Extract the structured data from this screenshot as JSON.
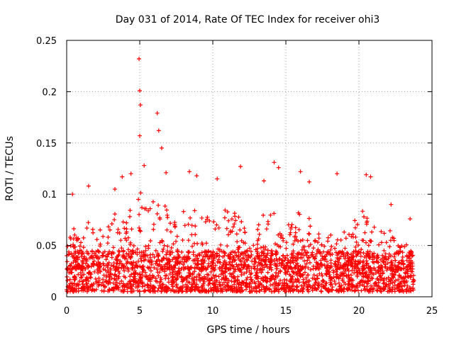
{
  "chart_data": {
    "type": "scatter",
    "title": "Day 031 of 2014, Rate Of TEC Index for receiver ohi3",
    "xlabel": "GPS time / hours",
    "ylabel": "ROTI / TECUs",
    "xlim": [
      0,
      25
    ],
    "ylim": [
      0,
      0.25
    ],
    "xticks": [
      0,
      5,
      10,
      15,
      20,
      25
    ],
    "xtick_labels": [
      "0",
      "5",
      "10",
      "15",
      "20",
      "25"
    ],
    "yticks": [
      0,
      0.05,
      0.1,
      0.15,
      0.2,
      0.25
    ],
    "ytick_labels": [
      "0",
      "0.05",
      "0.1",
      "0.15",
      "0.2",
      "0.25"
    ],
    "grid": true,
    "marker": "+",
    "color": "#ff0000",
    "series": [
      {
        "name": "ROTI",
        "x_range": [
          0,
          23.8
        ],
        "typical_range": [
          0.005,
          0.045
        ],
        "peaks": [
          {
            "x": 0.4,
            "y": 0.1
          },
          {
            "x": 1.5,
            "y": 0.108
          },
          {
            "x": 3.3,
            "y": 0.105
          },
          {
            "x": 3.8,
            "y": 0.117
          },
          {
            "x": 4.4,
            "y": 0.12
          },
          {
            "x": 4.95,
            "y": 0.232
          },
          {
            "x": 5.0,
            "y": 0.201
          },
          {
            "x": 5.05,
            "y": 0.187
          },
          {
            "x": 5.0,
            "y": 0.157
          },
          {
            "x": 5.3,
            "y": 0.128
          },
          {
            "x": 6.2,
            "y": 0.179
          },
          {
            "x": 6.3,
            "y": 0.162
          },
          {
            "x": 6.5,
            "y": 0.145
          },
          {
            "x": 6.8,
            "y": 0.121
          },
          {
            "x": 8.4,
            "y": 0.122
          },
          {
            "x": 8.9,
            "y": 0.118
          },
          {
            "x": 10.3,
            "y": 0.115
          },
          {
            "x": 11.9,
            "y": 0.127
          },
          {
            "x": 13.5,
            "y": 0.113
          },
          {
            "x": 14.2,
            "y": 0.131
          },
          {
            "x": 14.5,
            "y": 0.126
          },
          {
            "x": 16.0,
            "y": 0.122
          },
          {
            "x": 16.6,
            "y": 0.112
          },
          {
            "x": 18.5,
            "y": 0.12
          },
          {
            "x": 20.5,
            "y": 0.119
          },
          {
            "x": 20.8,
            "y": 0.117
          },
          {
            "x": 22.2,
            "y": 0.09
          },
          {
            "x": 23.5,
            "y": 0.076
          }
        ],
        "envelope": [
          {
            "x": 0.0,
            "y": 0.06
          },
          {
            "x": 0.5,
            "y": 0.075
          },
          {
            "x": 1.0,
            "y": 0.055
          },
          {
            "x": 1.5,
            "y": 0.075
          },
          {
            "x": 2.0,
            "y": 0.06
          },
          {
            "x": 2.5,
            "y": 0.07
          },
          {
            "x": 3.0,
            "y": 0.08
          },
          {
            "x": 3.5,
            "y": 0.085
          },
          {
            "x": 4.0,
            "y": 0.09
          },
          {
            "x": 4.5,
            "y": 0.085
          },
          {
            "x": 5.0,
            "y": 0.11
          },
          {
            "x": 5.5,
            "y": 0.09
          },
          {
            "x": 6.0,
            "y": 0.095
          },
          {
            "x": 6.5,
            "y": 0.1
          },
          {
            "x": 7.0,
            "y": 0.085
          },
          {
            "x": 7.5,
            "y": 0.07
          },
          {
            "x": 8.0,
            "y": 0.085
          },
          {
            "x": 8.5,
            "y": 0.095
          },
          {
            "x": 9.0,
            "y": 0.08
          },
          {
            "x": 9.5,
            "y": 0.075
          },
          {
            "x": 10.0,
            "y": 0.085
          },
          {
            "x": 10.5,
            "y": 0.09
          },
          {
            "x": 11.0,
            "y": 0.085
          },
          {
            "x": 11.5,
            "y": 0.09
          },
          {
            "x": 12.0,
            "y": 0.08
          },
          {
            "x": 12.5,
            "y": 0.07
          },
          {
            "x": 13.0,
            "y": 0.075
          },
          {
            "x": 13.5,
            "y": 0.085
          },
          {
            "x": 14.0,
            "y": 0.095
          },
          {
            "x": 14.5,
            "y": 0.09
          },
          {
            "x": 15.0,
            "y": 0.07
          },
          {
            "x": 15.5,
            "y": 0.075
          },
          {
            "x": 16.0,
            "y": 0.085
          },
          {
            "x": 16.5,
            "y": 0.08
          },
          {
            "x": 17.0,
            "y": 0.065
          },
          {
            "x": 17.5,
            "y": 0.06
          },
          {
            "x": 18.0,
            "y": 0.065
          },
          {
            "x": 18.5,
            "y": 0.07
          },
          {
            "x": 19.0,
            "y": 0.065
          },
          {
            "x": 19.5,
            "y": 0.075
          },
          {
            "x": 20.0,
            "y": 0.08
          },
          {
            "x": 20.5,
            "y": 0.09
          },
          {
            "x": 21.0,
            "y": 0.07
          },
          {
            "x": 21.5,
            "y": 0.065
          },
          {
            "x": 22.0,
            "y": 0.07
          },
          {
            "x": 22.5,
            "y": 0.055
          },
          {
            "x": 23.0,
            "y": 0.05
          },
          {
            "x": 23.5,
            "y": 0.065
          },
          {
            "x": 23.8,
            "y": 0.045
          }
        ]
      }
    ]
  }
}
